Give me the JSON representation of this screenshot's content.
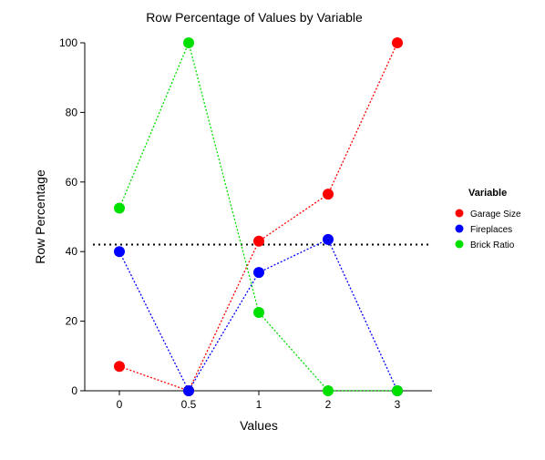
{
  "chart_data": {
    "type": "line",
    "title": "Row Percentage of Values by Variable",
    "xlabel": "Values",
    "ylabel": "Row Percentage",
    "categories": [
      "0",
      "0.5",
      "1",
      "2",
      "3"
    ],
    "ylim": [
      0,
      100
    ],
    "yticks": [
      0,
      20,
      40,
      60,
      80,
      100
    ],
    "grid": false,
    "reference_line": {
      "y": 42,
      "style": "dotted",
      "color": "#000000"
    },
    "legend": {
      "title": "Variable",
      "placement": "right"
    },
    "series": [
      {
        "name": "Garage Size",
        "color": "#ff0000",
        "values": [
          7,
          0,
          43,
          56.5,
          100
        ]
      },
      {
        "name": "Fireplaces",
        "color": "#0000ff",
        "values": [
          40,
          0,
          34,
          43.5,
          0
        ]
      },
      {
        "name": "Brick Ratio",
        "color": "#00e000",
        "values": [
          52.5,
          100,
          22.5,
          0,
          0
        ]
      }
    ]
  }
}
